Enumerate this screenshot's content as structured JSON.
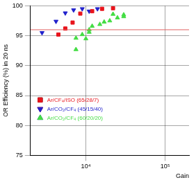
{
  "chart_data": {
    "type": "scatter",
    "y_label": "OR Efficiency (%) in 20 ns",
    "x_label": "Gain",
    "log": "x",
    "grid": true,
    "legend": "lower left",
    "xlim": [
      2000,
      200000
    ],
    "xticks": [
      {
        "value": 10000,
        "label": "10⁴"
      },
      {
        "value": 100000,
        "label": "10⁵"
      }
    ],
    "ylim": [
      75,
      100
    ],
    "yticks": [
      75,
      80,
      85,
      90,
      95,
      100
    ],
    "reference_line": {
      "value": 96,
      "color": "#e06060"
    },
    "series": [
      {
        "name": "Ar/CF₄/ISO (65/28/7)",
        "color": "#e8141c",
        "marker": "square",
        "x": [
          4500,
          5500,
          6800,
          8500,
          12000,
          16000,
          22000
        ],
        "values": [
          95.2,
          96.2,
          97.2,
          98.7,
          99.1,
          99.5,
          99.6
        ]
      },
      {
        "name": "Ar/CO₂/CF₄ (45/15/40)",
        "color": "#2222cc",
        "marker": "triangle-down",
        "x": [
          2800,
          4200,
          5500,
          7000,
          9000,
          11000,
          14000
        ],
        "values": [
          95.5,
          97.4,
          98.8,
          99.3,
          99.5,
          99.1,
          99.5
        ]
      },
      {
        "name": "Ar/CO₂/CF₄ (60/20/20)",
        "color": "#44dd44",
        "marker": "triangle-up",
        "x": [
          7500,
          7500,
          9000,
          10000,
          11000,
          11000,
          12000,
          15000,
          17000,
          20000,
          22000,
          25000,
          30000,
          30000
        ],
        "values": [
          92.7,
          94.6,
          95.2,
          94.5,
          96.0,
          95.6,
          96.6,
          96.9,
          97.3,
          97.5,
          98.6,
          98.0,
          98.5,
          98.2
        ]
      }
    ]
  }
}
